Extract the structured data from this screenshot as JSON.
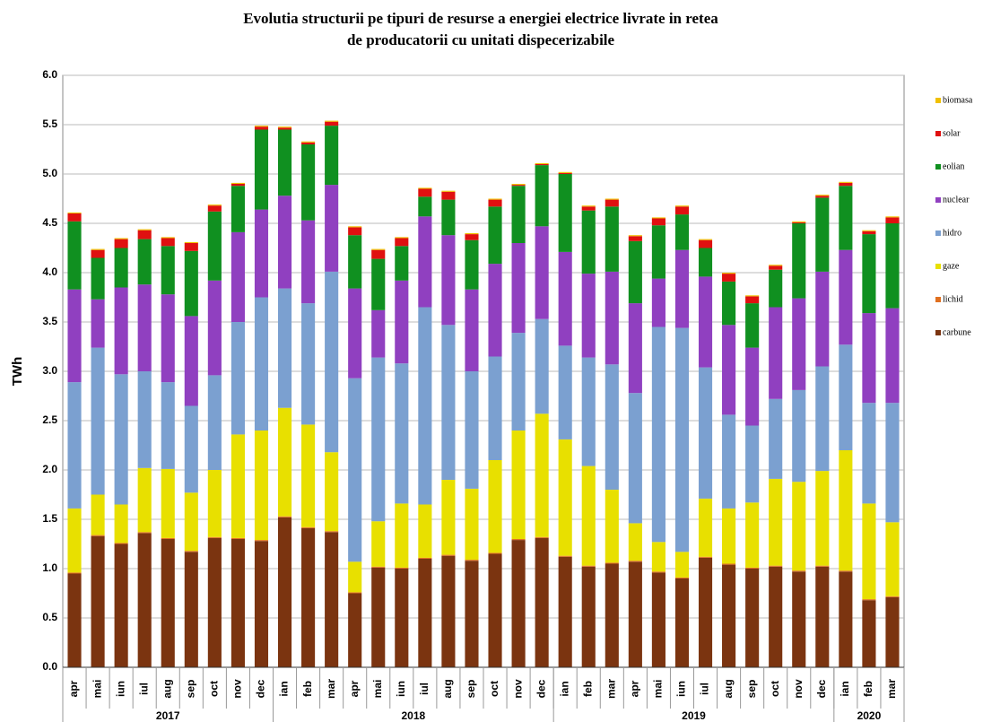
{
  "chart_data": {
    "type": "stacked_bar",
    "title_lines": [
      "Evolutia structurii pe tipuri de resurse a energiei electrice livrate in retea",
      "de producatorii cu unitati dispecerizabile"
    ],
    "y_label": "TWh",
    "groups": [
      {
        "name": "2017",
        "categories": [
          "apr",
          "mai",
          "iun",
          "iul",
          "aug",
          "sep",
          "oct",
          "nov",
          "dec"
        ]
      },
      {
        "name": "2018",
        "categories": [
          "ian",
          "feb",
          "mar",
          "apr",
          "mai",
          "iun",
          "iul",
          "aug",
          "sep",
          "oct",
          "nov",
          "dec"
        ]
      },
      {
        "name": "2019",
        "categories": [
          "ian",
          "feb",
          "mar",
          "apr",
          "mai",
          "iun",
          "iul",
          "aug",
          "sep",
          "oct",
          "nov",
          "dec"
        ]
      },
      {
        "name": "2020",
        "categories": [
          "ian",
          "feb",
          "mar"
        ]
      }
    ],
    "ylim": [
      0,
      6
    ],
    "yticks": [
      {
        "value": 0,
        "label": "0.0"
      },
      {
        "value": 0.5,
        "label": "0.5"
      },
      {
        "value": 1,
        "label": "1.0"
      },
      {
        "value": 1.5,
        "label": "1.5"
      },
      {
        "value": 2,
        "label": "2.0"
      },
      {
        "value": 2.5,
        "label": "2.5"
      },
      {
        "value": 3,
        "label": "3.0"
      },
      {
        "value": 3.5,
        "label": "3.5"
      },
      {
        "value": 4,
        "label": "4.0"
      },
      {
        "value": 4.5,
        "label": "4.5"
      },
      {
        "value": 5,
        "label": "5.0"
      },
      {
        "value": 5.5,
        "label": "5.5"
      },
      {
        "value": 6,
        "label": "6.0"
      }
    ],
    "grid": true,
    "legend": "right",
    "series": [
      {
        "name": "carbune",
        "color": "#7b3410",
        "values": [
          0.95,
          1.33,
          1.25,
          1.36,
          1.3,
          1.17,
          1.31,
          1.3,
          1.28,
          1.52,
          1.41,
          1.37,
          0.75,
          1.01,
          1.0,
          1.1,
          1.13,
          1.08,
          1.15,
          1.29,
          1.31,
          1.12,
          1.02,
          1.05,
          1.07,
          0.96,
          0.9,
          1.11,
          1.04,
          1.0,
          1.02,
          0.97,
          1.02,
          0.97,
          0.68,
          0.71
        ]
      },
      {
        "name": "lichid",
        "color": "#e07020",
        "values": [
          0.01,
          0.01,
          0.01,
          0.01,
          0.01,
          0.01,
          0.01,
          0.01,
          0.01,
          0.01,
          0.01,
          0.01,
          0.01,
          0.01,
          0.01,
          0.01,
          0.01,
          0.01,
          0.01,
          0.01,
          0.01,
          0.01,
          0.01,
          0.01,
          0.01,
          0.01,
          0.01,
          0.01,
          0.01,
          0.01,
          0.01,
          0.01,
          0.01,
          0.01,
          0.01,
          0.01
        ]
      },
      {
        "name": "gaze",
        "color": "#e8e000",
        "values": [
          0.65,
          0.41,
          0.39,
          0.65,
          0.7,
          0.59,
          0.68,
          1.05,
          1.11,
          1.1,
          1.04,
          0.8,
          0.31,
          0.46,
          0.65,
          0.54,
          0.76,
          0.72,
          0.94,
          1.1,
          1.25,
          1.18,
          1.01,
          0.74,
          0.38,
          0.3,
          0.26,
          0.59,
          0.56,
          0.66,
          0.88,
          0.9,
          0.96,
          1.22,
          0.97,
          0.75
        ]
      },
      {
        "name": "hidro",
        "color": "#7ba0d0",
        "values": [
          1.28,
          1.49,
          1.32,
          0.98,
          0.88,
          0.88,
          0.96,
          1.14,
          1.35,
          1.21,
          1.23,
          1.83,
          1.86,
          1.66,
          1.42,
          2.0,
          1.57,
          1.19,
          1.05,
          0.99,
          0.96,
          0.95,
          1.1,
          1.27,
          1.32,
          2.18,
          2.27,
          1.33,
          0.95,
          0.78,
          0.81,
          0.93,
          1.06,
          1.07,
          1.02,
          1.21
        ]
      },
      {
        "name": "nuclear",
        "color": "#9040c0",
        "values": [
          0.94,
          0.49,
          0.88,
          0.88,
          0.89,
          0.91,
          0.96,
          0.91,
          0.89,
          0.94,
          0.84,
          0.88,
          0.91,
          0.48,
          0.84,
          0.92,
          0.91,
          0.83,
          0.94,
          0.91,
          0.94,
          0.95,
          0.85,
          0.94,
          0.91,
          0.49,
          0.79,
          0.92,
          0.91,
          0.79,
          0.93,
          0.93,
          0.96,
          0.96,
          0.91,
          0.96
        ]
      },
      {
        "name": "eolian",
        "color": "#109020",
        "values": [
          0.69,
          0.42,
          0.4,
          0.46,
          0.49,
          0.66,
          0.7,
          0.47,
          0.81,
          0.67,
          0.77,
          0.6,
          0.54,
          0.52,
          0.35,
          0.2,
          0.36,
          0.5,
          0.58,
          0.58,
          0.62,
          0.79,
          0.64,
          0.66,
          0.63,
          0.54,
          0.36,
          0.29,
          0.44,
          0.45,
          0.38,
          0.76,
          0.75,
          0.65,
          0.8,
          0.86
        ]
      },
      {
        "name": "solar",
        "color": "#e01010",
        "values": [
          0.08,
          0.08,
          0.09,
          0.09,
          0.08,
          0.08,
          0.06,
          0.02,
          0.03,
          0.02,
          0.02,
          0.04,
          0.08,
          0.09,
          0.08,
          0.08,
          0.08,
          0.06,
          0.07,
          0.01,
          0.01,
          0.01,
          0.04,
          0.07,
          0.05,
          0.07,
          0.08,
          0.08,
          0.08,
          0.07,
          0.04,
          0.01,
          0.02,
          0.03,
          0.03,
          0.06
        ]
      },
      {
        "name": "biomasa",
        "color": "#f0c000",
        "values": [
          0.01,
          0.01,
          0.01,
          0.01,
          0.01,
          0.01,
          0.01,
          0.01,
          0.01,
          0.01,
          0.01,
          0.01,
          0.01,
          0.01,
          0.01,
          0.01,
          0.01,
          0.01,
          0.01,
          0.01,
          0.01,
          0.01,
          0.01,
          0.01,
          0.01,
          0.01,
          0.01,
          0.01,
          0.01,
          0.01,
          0.01,
          0.01,
          0.01,
          0.01,
          0.01,
          0.01
        ]
      }
    ]
  }
}
